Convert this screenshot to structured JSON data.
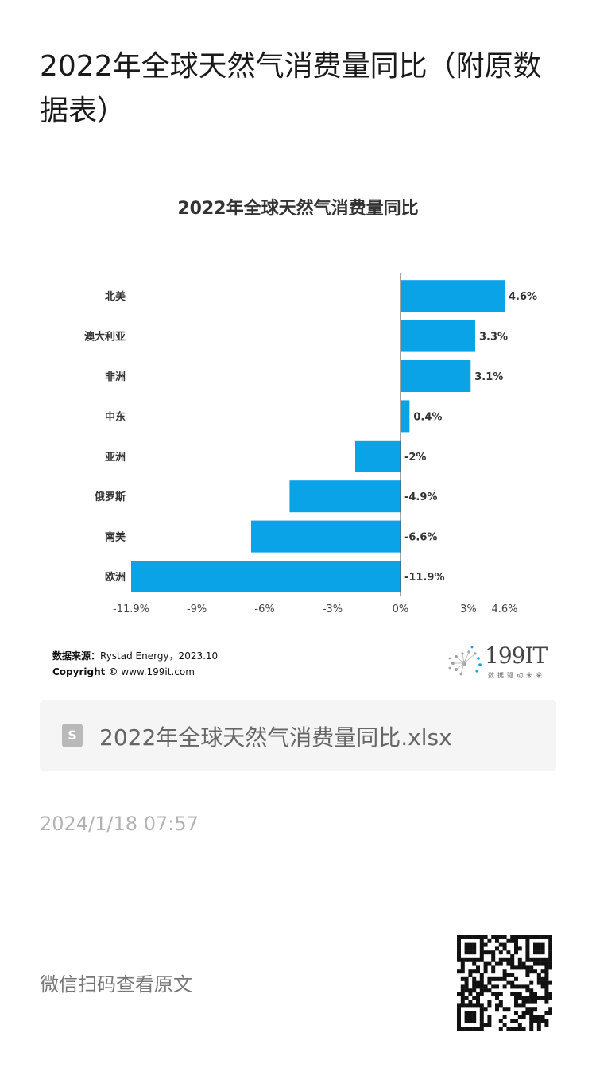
{
  "page": {
    "title": "2022年全球天然气消费量同比（附原数据表）"
  },
  "chart": {
    "source_label": "数据来源：",
    "source_value": "Rystad Energy，2023.10",
    "copyright_label": "Copyright ©",
    "copyright_value": "www.199it.com",
    "brand_number": "199IT",
    "brand_tagline": "数据驱动未来",
    "bar_color": "#0aa3e8"
  },
  "chart_data": {
    "type": "bar",
    "orientation": "horizontal",
    "title": "2022年全球天然气消费量同比",
    "categories": [
      "北美",
      "澳大利亚",
      "非洲",
      "中东",
      "亚洲",
      "俄罗斯",
      "南美",
      "欧洲"
    ],
    "values": [
      4.6,
      3.3,
      3.1,
      0.4,
      -2,
      -4.9,
      -6.6,
      -11.9
    ],
    "value_labels": [
      "4.6%",
      "3.3%",
      "3.1%",
      "0.4%",
      "-2%",
      "-4.9%",
      "-6.6%",
      "-11.9%"
    ],
    "xlim": [
      -11.9,
      4.6
    ],
    "xticks": [
      -11.9,
      -9,
      -6,
      -3,
      0,
      3,
      4.6
    ],
    "xtick_labels": [
      "-11.9%",
      "-9%",
      "-6%",
      "-3%",
      "0%",
      "3%",
      "4.6%"
    ],
    "grid": false,
    "legend": "none"
  },
  "file": {
    "icon": "spreadsheet-icon",
    "name": "2022年全球天然气消费量同比.xlsx"
  },
  "meta": {
    "timestamp": "2024/1/18 07:57",
    "scan_text": "微信扫码查看原文",
    "qr_icon": "qr-code"
  }
}
